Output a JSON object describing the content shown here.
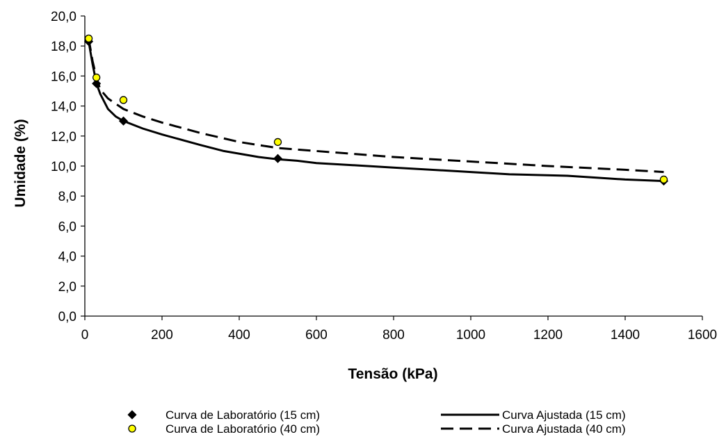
{
  "chart_data": {
    "type": "line",
    "title": "",
    "xlabel": "Tensão (kPa)",
    "ylabel": "Umidade (%)",
    "xlim": [
      0,
      1600
    ],
    "ylim": [
      0,
      20
    ],
    "xticks": [
      0,
      200,
      400,
      600,
      800,
      1000,
      1200,
      1400,
      1600
    ],
    "xtick_labels": [
      "0",
      "200",
      "400",
      "600",
      "800",
      "1000",
      "1200",
      "1400",
      "1600"
    ],
    "yticks": [
      0,
      2,
      4,
      6,
      8,
      10,
      12,
      14,
      16,
      18,
      20
    ],
    "ytick_labels": [
      "0,0",
      "2,0",
      "4,0",
      "6,0",
      "8,0",
      "10,0",
      "12,0",
      "14,0",
      "16,0",
      "18,0",
      "20,0"
    ],
    "grid": false,
    "legend_position": "bottom",
    "series": [
      {
        "name": "Curva de Laboratório (15 cm)",
        "style": "markers",
        "marker": "diamond",
        "color": "#000000",
        "x": [
          10,
          30,
          100,
          500,
          1500
        ],
        "y": [
          18.3,
          15.5,
          13.0,
          10.5,
          9.0
        ]
      },
      {
        "name": "Curva de Laboratório (40 cm)",
        "style": "markers",
        "marker": "circle",
        "color": "#ffff00",
        "x": [
          10,
          30,
          100,
          500,
          1500
        ],
        "y": [
          18.5,
          15.9,
          14.4,
          11.6,
          9.1
        ]
      },
      {
        "name": "Curva Ajustada (15 cm)",
        "style": "solid",
        "color": "#000000",
        "x": [
          10,
          20,
          30,
          40,
          60,
          80,
          100,
          150,
          200,
          300,
          360,
          450,
          500,
          550,
          600,
          800,
          1000,
          1100,
          1250,
          1400,
          1500
        ],
        "y": [
          18.3,
          16.8,
          15.5,
          14.8,
          13.8,
          13.3,
          13.0,
          12.5,
          12.1,
          11.4,
          11.0,
          10.6,
          10.45,
          10.35,
          10.2,
          9.9,
          9.6,
          9.45,
          9.35,
          9.1,
          9.0
        ]
      },
      {
        "name": "Curva Ajustada (40 cm)",
        "style": "dashed",
        "color": "#000000",
        "x": [
          10,
          20,
          30,
          40,
          60,
          100,
          150,
          200,
          300,
          400,
          500,
          600,
          800,
          1000,
          1200,
          1400,
          1500
        ],
        "y": [
          18.5,
          17.0,
          15.9,
          15.1,
          14.5,
          13.8,
          13.3,
          12.9,
          12.2,
          11.6,
          11.2,
          11.0,
          10.6,
          10.3,
          10.0,
          9.75,
          9.6
        ]
      }
    ]
  }
}
